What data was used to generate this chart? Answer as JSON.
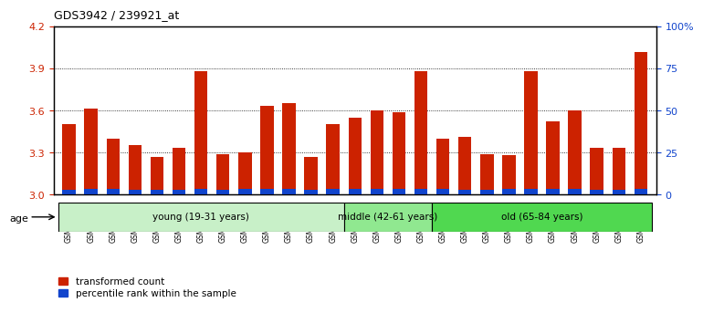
{
  "title": "GDS3942 / 239921_at",
  "samples": [
    "GSM812988",
    "GSM812989",
    "GSM812990",
    "GSM812991",
    "GSM812992",
    "GSM812993",
    "GSM812994",
    "GSM812995",
    "GSM812996",
    "GSM812997",
    "GSM812998",
    "GSM812999",
    "GSM813000",
    "GSM813001",
    "GSM813002",
    "GSM813003",
    "GSM813004",
    "GSM813005",
    "GSM813006",
    "GSM813007",
    "GSM813008",
    "GSM813009",
    "GSM813010",
    "GSM813011",
    "GSM813012",
    "GSM813013",
    "GSM813014"
  ],
  "red_values": [
    3.5,
    3.61,
    3.4,
    3.35,
    3.27,
    3.33,
    3.88,
    3.29,
    3.3,
    3.63,
    3.65,
    3.27,
    3.5,
    3.55,
    3.6,
    3.59,
    3.88,
    3.4,
    3.41,
    3.29,
    3.28,
    3.88,
    3.52,
    3.6,
    3.33,
    3.33,
    4.02
  ],
  "blue_values": [
    0.03,
    0.04,
    0.04,
    0.03,
    0.03,
    0.03,
    0.04,
    0.03,
    0.04,
    0.04,
    0.04,
    0.03,
    0.04,
    0.04,
    0.04,
    0.04,
    0.04,
    0.04,
    0.03,
    0.03,
    0.04,
    0.04,
    0.04,
    0.04,
    0.03,
    0.03,
    0.04
  ],
  "groups": [
    {
      "label": "young (19-31 years)",
      "start": 0,
      "end": 13,
      "color": "#c8f0c8"
    },
    {
      "label": "middle (42-61 years)",
      "start": 13,
      "end": 17,
      "color": "#90e890"
    },
    {
      "label": "old (65-84 years)",
      "start": 17,
      "end": 27,
      "color": "#50d850"
    }
  ],
  "ymin": 3.0,
  "ymax": 4.2,
  "yticks": [
    3.0,
    3.3,
    3.6,
    3.9,
    4.2
  ],
  "y2ticks": [
    0,
    25,
    50,
    75,
    100
  ],
  "y2labels": [
    "0",
    "25",
    "50",
    "75",
    "100%"
  ],
  "bar_color_red": "#cc2200",
  "bar_color_blue": "#1144cc",
  "bar_width": 0.6,
  "tick_color_left": "#cc2200",
  "tick_color_right": "#1144cc",
  "grid_color": "#000000",
  "legend_red_label": "transformed count",
  "legend_blue_label": "percentile rank within the sample",
  "age_label": "age"
}
